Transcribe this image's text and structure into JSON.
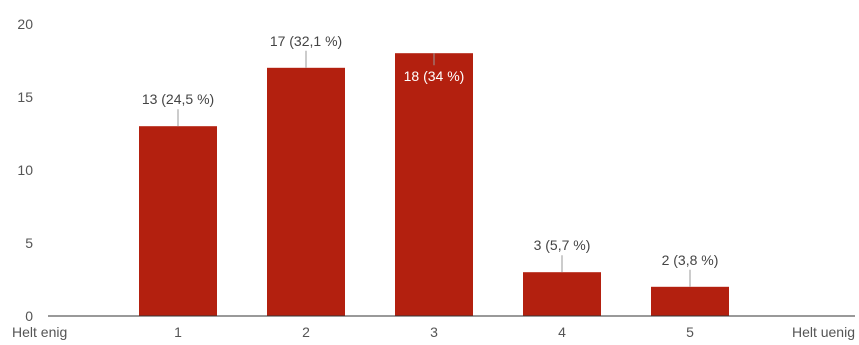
{
  "chart_data": {
    "type": "bar",
    "categories": [
      "1",
      "2",
      "3",
      "4",
      "5"
    ],
    "values": [
      13,
      17,
      18,
      3,
      2
    ],
    "data_labels": [
      "13 (24,5 %)",
      "17 (32,1 %)",
      "18 (34 %)",
      "3 (5,7 %)",
      "2 (3,8 %)"
    ],
    "y_ticks": [
      "0",
      "5",
      "10",
      "15",
      "20"
    ],
    "x_end_labels": {
      "left": "Helt enig",
      "right": "Helt uenig"
    },
    "ylim": [
      0,
      20
    ],
    "grid": false,
    "colors": {
      "bar": "#b3200f",
      "axis": "#333333",
      "label_leader": "#999999"
    }
  }
}
